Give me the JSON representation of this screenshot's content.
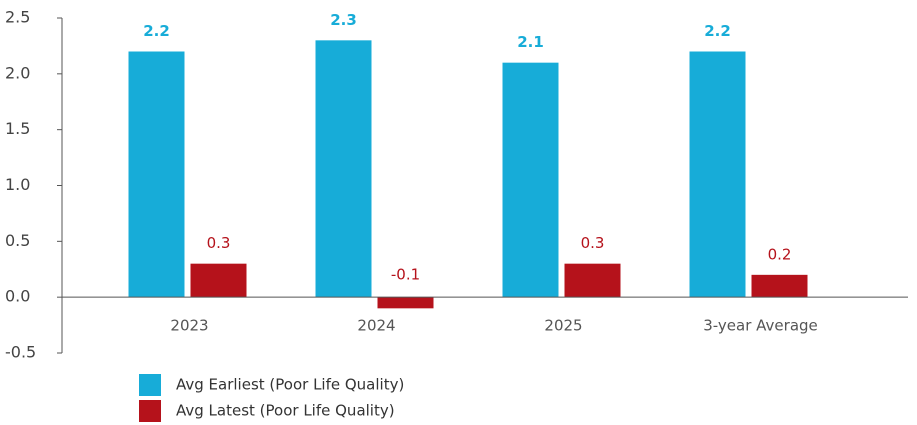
{
  "chart_data": {
    "type": "bar",
    "categories": [
      "2023",
      "2024",
      "2025",
      "3-year Average"
    ],
    "series": [
      {
        "name": "Avg Earliest (Poor Life Quality)",
        "color": "#17acd8",
        "values": [
          2.2,
          2.3,
          2.1,
          2.2
        ]
      },
      {
        "name": "Avg Latest (Poor Life Quality)",
        "color": "#b5121b",
        "values": [
          0.3,
          -0.1,
          0.3,
          0.2
        ]
      }
    ],
    "ylim": [
      -0.5,
      2.5
    ],
    "yticks": [
      -0.5,
      {
        "value": 0,
        "label": "0.0"
      },
      0.5,
      {
        "value": 1,
        "label": "1.0"
      },
      1.5,
      {
        "value": 2,
        "label": "2.0"
      },
      2.5
    ],
    "grid": false
  }
}
